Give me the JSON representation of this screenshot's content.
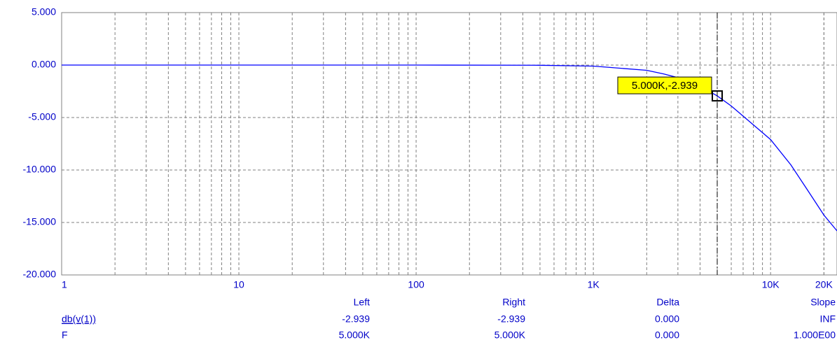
{
  "chart_data": {
    "type": "line",
    "log_x": true,
    "grid": true,
    "xlim": [
      1,
      23700
    ],
    "ylim": [
      -20,
      5
    ],
    "xticks": [
      1,
      10,
      100,
      {
        "value": 1000,
        "label": "1K"
      },
      {
        "value": 10000,
        "label": "10K"
      },
      {
        "value": 20000,
        "label": "20K"
      }
    ],
    "yticks": [
      {
        "value": 5,
        "label": "5.000"
      },
      {
        "value": 0,
        "label": "0.000"
      },
      {
        "value": -5,
        "label": "-5.000"
      },
      {
        "value": -10,
        "label": "-10.000"
      },
      {
        "value": -15,
        "label": "-15.000"
      },
      {
        "value": -20,
        "label": "-20.000"
      }
    ],
    "x": [
      1,
      100,
      500,
      1000,
      2000,
      2500,
      3000,
      4000,
      5000,
      6000,
      8000,
      10000,
      13000,
      16000,
      20000,
      23700
    ],
    "series": [
      {
        "name": "db(v(1))",
        "color": "#0000ff",
        "values": [
          0,
          0,
          -0.02,
          -0.1,
          -0.5,
          -0.85,
          -1.2,
          -2.0,
          -2.939,
          -3.9,
          -5.7,
          -7.1,
          -9.5,
          -11.8,
          -14.3,
          -15.8
        ]
      }
    ],
    "cursor": {
      "x": 5000,
      "y": -2.939,
      "label": "5.000K,-2.939"
    },
    "table": {
      "headers": [
        "Left",
        "Right",
        "Delta",
        "Slope"
      ],
      "rows": [
        [
          "db(v(1))",
          "-2.939",
          "-2.939",
          "0.000",
          "INF"
        ],
        [
          "F",
          "5.000K",
          "5.000K",
          "0.000",
          "1.000E00"
        ]
      ]
    }
  }
}
